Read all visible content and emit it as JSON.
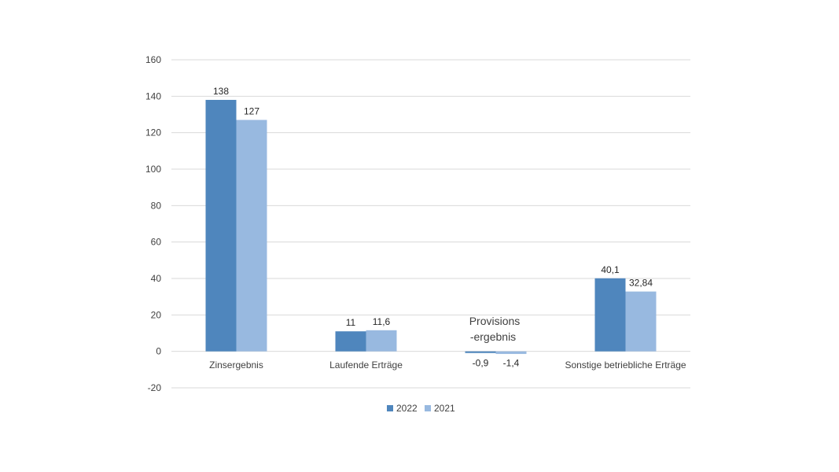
{
  "chart_data": {
    "type": "bar",
    "categories": [
      "Zinsergebnis",
      "Laufende Erträge",
      "",
      "Sonstige betriebliche Erträge"
    ],
    "series": [
      {
        "name": "2022",
        "values": [
          138,
          11,
          -0.9,
          40.1
        ],
        "labels": [
          "138",
          "11",
          "-0,9",
          "40,1"
        ],
        "color": "#4f86bd"
      },
      {
        "name": "2021",
        "values": [
          127,
          11.6,
          -1.4,
          32.84
        ],
        "labels": [
          "127",
          "11,6",
          "-1,4",
          "32,84"
        ],
        "color": "#98b9e0"
      }
    ],
    "annotation": [
      "Provisions",
      "-ergebnis"
    ],
    "ylim": [
      -20,
      160
    ],
    "yticks": [
      -20,
      0,
      20,
      40,
      60,
      80,
      100,
      120,
      140,
      160
    ],
    "grid": true,
    "legend_position": "bottom"
  }
}
